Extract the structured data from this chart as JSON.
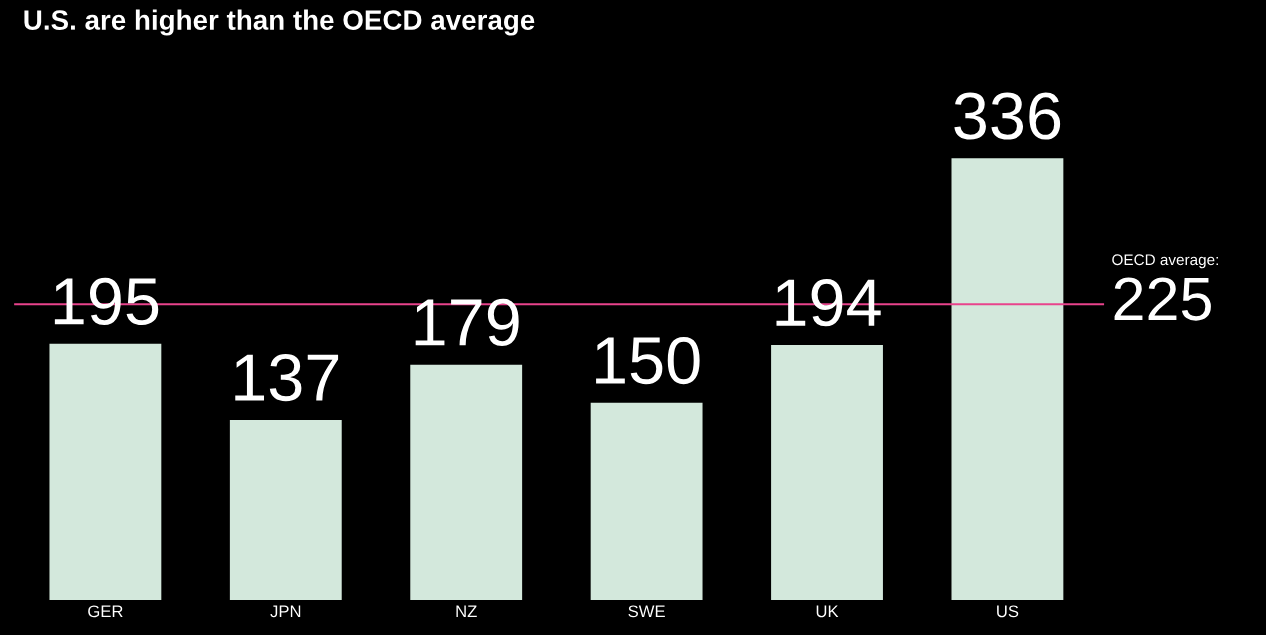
{
  "chart_data": {
    "type": "bar",
    "title": "U.S. are higher than the OECD average",
    "categories": [
      "GER",
      "JPN",
      "NZ",
      "SWE",
      "UK",
      "US"
    ],
    "values": [
      195,
      137,
      179,
      150,
      194,
      336
    ],
    "color": "#d3e8dc",
    "data_labels": true,
    "grid": false,
    "legend": false,
    "ref_lines": [
      {
        "axis": "y",
        "value": 225,
        "label": "OECD average:",
        "color": "#e8438c",
        "line_style": "solid"
      }
    ],
    "annotations": [
      "225"
    ]
  }
}
